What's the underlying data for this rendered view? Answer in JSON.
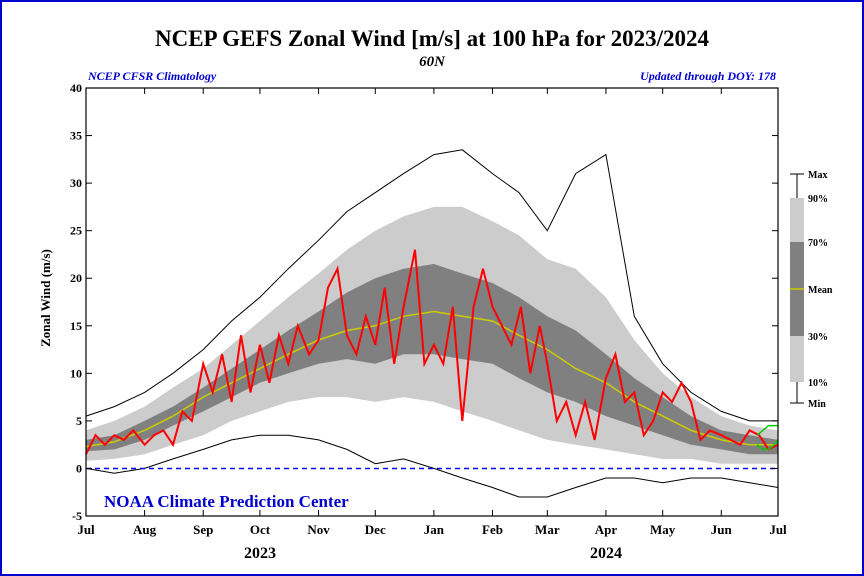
{
  "chart_data": {
    "type": "area",
    "title": "NCEP GEFS Zonal Wind [m/s] at 100 hPa for 2023/2024",
    "subtitle": "60N",
    "left_note": "NCEP CFSR Climatology",
    "right_note": "Updated through DOY: 178",
    "credit": "NOAA Climate Prediction Center",
    "ylabel": "Zonal Wind (m/s)",
    "ylim": [
      -5,
      40
    ],
    "yticks": [
      -5,
      0,
      5,
      10,
      15,
      20,
      25,
      30,
      35,
      40
    ],
    "xlim": [
      0,
      366
    ],
    "month_ticks": [
      {
        "label": "Jul",
        "day": 0
      },
      {
        "label": "Aug",
        "day": 31
      },
      {
        "label": "Sep",
        "day": 62
      },
      {
        "label": "Oct",
        "day": 92
      },
      {
        "label": "Nov",
        "day": 123
      },
      {
        "label": "Dec",
        "day": 153
      },
      {
        "label": "Jan",
        "day": 184
      },
      {
        "label": "Feb",
        "day": 215
      },
      {
        "label": "Mar",
        "day": 244
      },
      {
        "label": "Apr",
        "day": 275
      },
      {
        "label": "May",
        "day": 305
      },
      {
        "label": "Jun",
        "day": 336
      },
      {
        "label": "Jul",
        "day": 366
      }
    ],
    "year_labels": [
      {
        "label": "2023",
        "day": 92
      },
      {
        "label": "2024",
        "day": 275
      }
    ],
    "zero_line": 0,
    "colors": {
      "min_max": "#000000",
      "band_10_90": "#cccccc",
      "band_30_70": "#808080",
      "mean": "#cccc00",
      "observed": "#ff0000",
      "forecast": "#00cc00",
      "zero_line": "#0000ff",
      "credit": "#0000cc",
      "notes": "#0000cc",
      "border": "#0000cc"
    },
    "legend": {
      "placement": "right",
      "items": [
        "Max",
        "90%",
        "70%",
        "Mean",
        "30%",
        "10%",
        "Min"
      ]
    },
    "series": {
      "x": [
        0,
        15,
        31,
        46,
        62,
        77,
        92,
        107,
        123,
        138,
        153,
        168,
        184,
        199,
        215,
        229,
        244,
        259,
        275,
        290,
        305,
        320,
        336,
        351,
        366
      ],
      "max": [
        5.5,
        6.5,
        8,
        10,
        12.5,
        15.5,
        18,
        21,
        24,
        27,
        29,
        31,
        33,
        33.5,
        31,
        29,
        25,
        31,
        33,
        16,
        11,
        8,
        6,
        5,
        5
      ],
      "p90": [
        4,
        5,
        6.5,
        8.5,
        10.5,
        13,
        15.5,
        18,
        20.5,
        23,
        25,
        26.5,
        27.5,
        27.5,
        26,
        24.5,
        22,
        21,
        18,
        13.5,
        10,
        7.5,
        5.5,
        4.5,
        4
      ],
      "p70": [
        3,
        3.5,
        5,
        6.5,
        8.5,
        10.5,
        12.5,
        14.5,
        16.5,
        18.5,
        20,
        21,
        21.5,
        20.5,
        19.5,
        18,
        16,
        14.5,
        12,
        9.5,
        7.5,
        5.5,
        4,
        3.5,
        3
      ],
      "mean": [
        2.3,
        2.8,
        4,
        5.5,
        7.5,
        9,
        10.5,
        12,
        13.5,
        14.5,
        15,
        16,
        16.5,
        16,
        15.5,
        14,
        12.5,
        10.5,
        9,
        7,
        5.5,
        4,
        3,
        2.5,
        2.5
      ],
      "p30": [
        1.8,
        2,
        3,
        4.5,
        6,
        7.5,
        9,
        10,
        11,
        11.5,
        11,
        12,
        12,
        11.5,
        11,
        9.5,
        8,
        7,
        5.5,
        4.5,
        3.5,
        2.5,
        2,
        1.5,
        1.5
      ],
      "p10": [
        0.8,
        1,
        1.5,
        2.5,
        3.5,
        5,
        6,
        7,
        7.5,
        7.5,
        7,
        7.5,
        7,
        6,
        5,
        4,
        3,
        2.5,
        2,
        1.5,
        1,
        1,
        0.5,
        0.5,
        0.5
      ],
      "min": [
        0,
        -0.5,
        0,
        1,
        2,
        3,
        3.5,
        3.5,
        3,
        2,
        0.5,
        1,
        0,
        -1,
        -2,
        -3,
        -3,
        -2,
        -1,
        -1,
        -1.5,
        -1,
        -1,
        -1.5,
        -2
      ]
    },
    "observed": {
      "x": [
        0,
        5,
        10,
        15,
        20,
        25,
        31,
        36,
        41,
        46,
        51,
        56,
        62,
        67,
        72,
        77,
        82,
        87,
        92,
        97,
        102,
        107,
        112,
        118,
        123,
        128,
        133,
        138,
        143,
        148,
        153,
        158,
        163,
        168,
        174,
        179,
        184,
        189,
        194,
        199,
        205,
        210,
        215,
        220,
        225,
        230,
        235,
        240,
        244,
        249,
        254,
        259,
        264,
        269,
        275,
        280,
        285,
        290,
        295,
        300,
        305,
        310,
        315,
        320,
        325,
        330,
        336,
        341,
        346,
        351,
        356,
        361,
        366
      ],
      "y": [
        1.5,
        3.5,
        2.5,
        3.5,
        3,
        4,
        2.5,
        3.5,
        4,
        2.5,
        6,
        5,
        11,
        8,
        12,
        7,
        14,
        8,
        13,
        9,
        14,
        11,
        15,
        12,
        13.5,
        19,
        21,
        14,
        12,
        16,
        13,
        19,
        11,
        17,
        23,
        11,
        13,
        11,
        17,
        5,
        17,
        21,
        17,
        15,
        13,
        17,
        10,
        15,
        11,
        5,
        7,
        3.5,
        7,
        3,
        9.5,
        12,
        7,
        8,
        3.5,
        5,
        8,
        7,
        9,
        7,
        3,
        4,
        3.5,
        3,
        2.5,
        4,
        3.5,
        2,
        2.5
      ],
      "note": "red observed line, values visually approximated"
    },
    "forecast": {
      "x": [
        355,
        358,
        361,
        364,
        366
      ],
      "min": [
        2.5,
        2,
        2,
        2.5,
        3
      ],
      "max": [
        3.5,
        4,
        4.5,
        4.5,
        4.5
      ],
      "note": "green forecast spread lines"
    }
  }
}
